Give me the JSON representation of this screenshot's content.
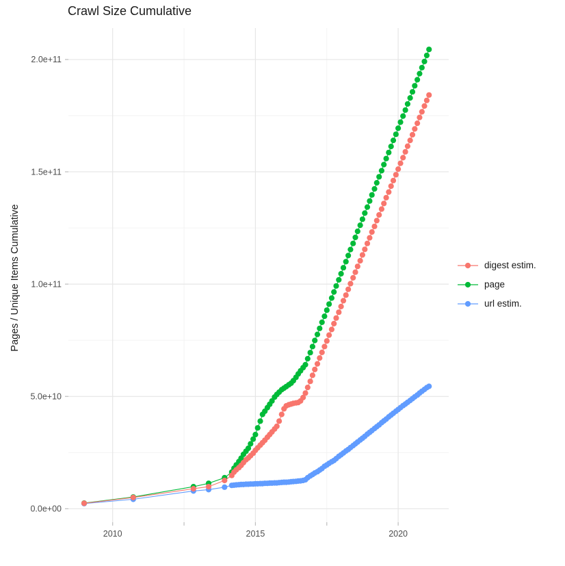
{
  "chart_data": {
    "type": "line",
    "title": "Crawl Size Cumulative",
    "xlabel": "",
    "ylabel": "Pages / Unique Items Cumulative",
    "y_unit": "absolute counts, point values stored in units of 1e9",
    "x_domain": [
      2008.45,
      2021.77
    ],
    "y_domain_e9": [
      -6,
      214
    ],
    "grid": "on",
    "legend_position": "right",
    "colors": {
      "major_grid": "#e6e6e6",
      "minor_grid": "#f2f2f2",
      "axis_tick": "#bdbdbd",
      "tick_text": "#4d4d4d",
      "title_text": "#1a1a1a"
    },
    "x_ticks": {
      "major": [
        {
          "value": 2010,
          "label": "2010"
        },
        {
          "value": 2015,
          "label": "2015"
        },
        {
          "value": 2020,
          "label": "2020"
        }
      ],
      "minor": [
        2012.5,
        2017.5
      ]
    },
    "y_ticks": {
      "major": [
        {
          "value": 0,
          "label": "0.0e+00"
        },
        {
          "value": 50,
          "label": "5.0e+10"
        },
        {
          "value": 100,
          "label": "1.0e+11"
        },
        {
          "value": 150,
          "label": "1.5e+11"
        },
        {
          "value": 200,
          "label": "2.0e+11"
        }
      ],
      "minor": [
        25,
        75,
        125,
        175
      ]
    },
    "series": [
      {
        "name": "digest estim.",
        "color": "#F8766D",
        "points": [
          [
            2009.0,
            2.4
          ],
          [
            2010.72,
            5.0
          ],
          [
            2012.83,
            8.9
          ],
          [
            2013.36,
            9.8
          ],
          [
            2013.92,
            12.6
          ],
          [
            2014.17,
            14.8
          ],
          [
            2014.25,
            16.3
          ],
          [
            2014.33,
            17.3
          ],
          [
            2014.42,
            18.3
          ],
          [
            2014.5,
            19.3
          ],
          [
            2014.58,
            20.5
          ],
          [
            2014.67,
            21.8
          ],
          [
            2014.75,
            22.6
          ],
          [
            2014.83,
            23.6
          ],
          [
            2014.92,
            24.7
          ],
          [
            2015.0,
            26.0
          ],
          [
            2015.08,
            27.1
          ],
          [
            2015.17,
            28.3
          ],
          [
            2015.25,
            29.4
          ],
          [
            2015.33,
            30.5
          ],
          [
            2015.42,
            31.8
          ],
          [
            2015.5,
            33.0
          ],
          [
            2015.58,
            34.2
          ],
          [
            2015.67,
            35.5
          ],
          [
            2015.75,
            36.7
          ],
          [
            2015.83,
            39.0
          ],
          [
            2015.92,
            42.0
          ],
          [
            2016.0,
            44.5
          ],
          [
            2016.08,
            45.8
          ],
          [
            2016.17,
            46.3
          ],
          [
            2016.25,
            46.6
          ],
          [
            2016.33,
            46.9
          ],
          [
            2016.42,
            47.1
          ],
          [
            2016.5,
            47.3
          ],
          [
            2016.58,
            48.0
          ],
          [
            2016.67,
            49.5
          ],
          [
            2016.75,
            51.5
          ],
          [
            2016.83,
            54.0
          ],
          [
            2016.92,
            56.7
          ],
          [
            2017.0,
            59.4
          ],
          [
            2017.08,
            62.0
          ],
          [
            2017.17,
            64.5
          ],
          [
            2017.25,
            67.1
          ],
          [
            2017.33,
            69.6
          ],
          [
            2017.42,
            72.2
          ],
          [
            2017.5,
            74.7
          ],
          [
            2017.58,
            77.3
          ],
          [
            2017.67,
            79.8
          ],
          [
            2017.75,
            82.4
          ],
          [
            2017.83,
            84.9
          ],
          [
            2017.92,
            87.5
          ],
          [
            2018.0,
            90.0
          ],
          [
            2018.08,
            92.6
          ],
          [
            2018.17,
            95.1
          ],
          [
            2018.25,
            97.7
          ],
          [
            2018.33,
            100.2
          ],
          [
            2018.42,
            102.8
          ],
          [
            2018.5,
            105.3
          ],
          [
            2018.58,
            107.9
          ],
          [
            2018.67,
            110.4
          ],
          [
            2018.75,
            113.0
          ],
          [
            2018.83,
            115.5
          ],
          [
            2018.92,
            118.1
          ],
          [
            2019.0,
            120.6
          ],
          [
            2019.08,
            123.2
          ],
          [
            2019.17,
            125.7
          ],
          [
            2019.25,
            128.3
          ],
          [
            2019.33,
            130.8
          ],
          [
            2019.42,
            133.4
          ],
          [
            2019.5,
            135.9
          ],
          [
            2019.58,
            138.5
          ],
          [
            2019.67,
            141.0
          ],
          [
            2019.75,
            143.6
          ],
          [
            2019.83,
            146.1
          ],
          [
            2019.92,
            148.7
          ],
          [
            2020.0,
            151.2
          ],
          [
            2020.08,
            153.8
          ],
          [
            2020.17,
            156.3
          ],
          [
            2020.25,
            158.9
          ],
          [
            2020.33,
            161.4
          ],
          [
            2020.42,
            164.0
          ],
          [
            2020.5,
            166.5
          ],
          [
            2020.58,
            169.1
          ],
          [
            2020.67,
            171.6
          ],
          [
            2020.75,
            174.2
          ],
          [
            2020.83,
            176.7
          ],
          [
            2020.92,
            179.3
          ],
          [
            2021.0,
            181.8
          ],
          [
            2021.08,
            184.2
          ]
        ]
      },
      {
        "name": "page",
        "color": "#00BA38",
        "points": [
          [
            2009.0,
            2.5
          ],
          [
            2010.72,
            5.2
          ],
          [
            2012.83,
            9.8
          ],
          [
            2013.36,
            11.3
          ],
          [
            2013.92,
            13.8
          ],
          [
            2014.17,
            16.3
          ],
          [
            2014.25,
            18.0
          ],
          [
            2014.33,
            19.5
          ],
          [
            2014.42,
            21.0
          ],
          [
            2014.5,
            22.5
          ],
          [
            2014.58,
            24.2
          ],
          [
            2014.67,
            25.6
          ],
          [
            2014.75,
            26.9
          ],
          [
            2014.83,
            28.9
          ],
          [
            2014.92,
            31.0
          ],
          [
            2015.0,
            33.0
          ],
          [
            2015.08,
            36.0
          ],
          [
            2015.17,
            39.0
          ],
          [
            2015.25,
            42.0
          ],
          [
            2015.33,
            43.4
          ],
          [
            2015.42,
            45.0
          ],
          [
            2015.5,
            46.5
          ],
          [
            2015.58,
            48.0
          ],
          [
            2015.67,
            49.7
          ],
          [
            2015.75,
            50.9
          ],
          [
            2015.83,
            51.9
          ],
          [
            2015.92,
            53.0
          ],
          [
            2016.0,
            53.7
          ],
          [
            2016.08,
            54.4
          ],
          [
            2016.17,
            55.2
          ],
          [
            2016.25,
            55.9
          ],
          [
            2016.33,
            57.0
          ],
          [
            2016.42,
            58.5
          ],
          [
            2016.5,
            60.0
          ],
          [
            2016.58,
            61.4
          ],
          [
            2016.67,
            62.8
          ],
          [
            2016.75,
            64.1
          ],
          [
            2016.83,
            66.8
          ],
          [
            2016.92,
            69.5
          ],
          [
            2017.0,
            72.2
          ],
          [
            2017.08,
            74.9
          ],
          [
            2017.17,
            77.6
          ],
          [
            2017.25,
            80.3
          ],
          [
            2017.33,
            83.0
          ],
          [
            2017.42,
            85.7
          ],
          [
            2017.5,
            88.4
          ],
          [
            2017.58,
            91.1
          ],
          [
            2017.67,
            93.8
          ],
          [
            2017.75,
            96.5
          ],
          [
            2017.83,
            99.2
          ],
          [
            2017.92,
            101.9
          ],
          [
            2018.0,
            104.6
          ],
          [
            2018.08,
            107.3
          ],
          [
            2018.17,
            110.0
          ],
          [
            2018.25,
            112.7
          ],
          [
            2018.33,
            115.4
          ],
          [
            2018.42,
            118.1
          ],
          [
            2018.5,
            120.8
          ],
          [
            2018.58,
            123.5
          ],
          [
            2018.67,
            126.2
          ],
          [
            2018.75,
            128.9
          ],
          [
            2018.83,
            131.6
          ],
          [
            2018.92,
            134.3
          ],
          [
            2019.0,
            137.0
          ],
          [
            2019.08,
            139.7
          ],
          [
            2019.17,
            142.4
          ],
          [
            2019.25,
            145.1
          ],
          [
            2019.33,
            147.8
          ],
          [
            2019.42,
            150.5
          ],
          [
            2019.5,
            153.2
          ],
          [
            2019.58,
            155.9
          ],
          [
            2019.67,
            158.6
          ],
          [
            2019.75,
            161.3
          ],
          [
            2019.83,
            164.0
          ],
          [
            2019.92,
            166.7
          ],
          [
            2020.0,
            169.4
          ],
          [
            2020.08,
            172.1
          ],
          [
            2020.17,
            174.8
          ],
          [
            2020.25,
            177.5
          ],
          [
            2020.33,
            180.2
          ],
          [
            2020.42,
            182.9
          ],
          [
            2020.5,
            185.6
          ],
          [
            2020.58,
            188.3
          ],
          [
            2020.67,
            191.0
          ],
          [
            2020.75,
            193.7
          ],
          [
            2020.83,
            196.4
          ],
          [
            2020.92,
            199.1
          ],
          [
            2021.0,
            201.8
          ],
          [
            2021.08,
            204.5
          ]
        ]
      },
      {
        "name": "url estim.",
        "color": "#619CFF",
        "points": [
          [
            2009.0,
            2.3
          ],
          [
            2010.72,
            4.2
          ],
          [
            2012.83,
            7.9
          ],
          [
            2013.36,
            8.5
          ],
          [
            2013.92,
            9.6
          ],
          [
            2014.17,
            10.4
          ],
          [
            2014.25,
            10.5
          ],
          [
            2014.33,
            10.6
          ],
          [
            2014.42,
            10.7
          ],
          [
            2014.5,
            10.8
          ],
          [
            2014.58,
            10.8
          ],
          [
            2014.67,
            10.9
          ],
          [
            2014.75,
            10.9
          ],
          [
            2014.83,
            11.0
          ],
          [
            2014.92,
            11.0
          ],
          [
            2015.0,
            11.1
          ],
          [
            2015.08,
            11.1
          ],
          [
            2015.17,
            11.2
          ],
          [
            2015.25,
            11.2
          ],
          [
            2015.33,
            11.3
          ],
          [
            2015.42,
            11.3
          ],
          [
            2015.5,
            11.4
          ],
          [
            2015.58,
            11.4
          ],
          [
            2015.67,
            11.5
          ],
          [
            2015.75,
            11.5
          ],
          [
            2015.83,
            11.6
          ],
          [
            2015.92,
            11.7
          ],
          [
            2016.0,
            11.8
          ],
          [
            2016.08,
            11.8
          ],
          [
            2016.17,
            11.9
          ],
          [
            2016.25,
            12.0
          ],
          [
            2016.33,
            12.1
          ],
          [
            2016.42,
            12.2
          ],
          [
            2016.5,
            12.3
          ],
          [
            2016.58,
            12.4
          ],
          [
            2016.67,
            12.6
          ],
          [
            2016.75,
            12.9
          ],
          [
            2016.83,
            13.8
          ],
          [
            2016.92,
            14.6
          ],
          [
            2017.0,
            15.2
          ],
          [
            2017.08,
            15.9
          ],
          [
            2017.17,
            16.5
          ],
          [
            2017.25,
            17.2
          ],
          [
            2017.33,
            17.9
          ],
          [
            2017.42,
            18.9
          ],
          [
            2017.5,
            19.5
          ],
          [
            2017.58,
            20.2
          ],
          [
            2017.67,
            20.9
          ],
          [
            2017.75,
            21.5
          ],
          [
            2017.83,
            22.3
          ],
          [
            2017.92,
            23.3
          ],
          [
            2018.0,
            24.0
          ],
          [
            2018.08,
            24.8
          ],
          [
            2018.17,
            25.7
          ],
          [
            2018.25,
            26.4
          ],
          [
            2018.33,
            27.2
          ],
          [
            2018.42,
            28.1
          ],
          [
            2018.5,
            28.9
          ],
          [
            2018.58,
            29.7
          ],
          [
            2018.67,
            30.6
          ],
          [
            2018.75,
            31.4
          ],
          [
            2018.83,
            32.2
          ],
          [
            2018.92,
            33.2
          ],
          [
            2019.0,
            34.0
          ],
          [
            2019.08,
            34.8
          ],
          [
            2019.17,
            35.7
          ],
          [
            2019.25,
            36.5
          ],
          [
            2019.33,
            37.3
          ],
          [
            2019.42,
            38.3
          ],
          [
            2019.5,
            39.1
          ],
          [
            2019.58,
            39.9
          ],
          [
            2019.67,
            40.9
          ],
          [
            2019.75,
            41.7
          ],
          [
            2019.83,
            42.5
          ],
          [
            2019.92,
            43.4
          ],
          [
            2020.0,
            44.2
          ],
          [
            2020.08,
            45.0
          ],
          [
            2020.17,
            45.9
          ],
          [
            2020.25,
            46.6
          ],
          [
            2020.33,
            47.4
          ],
          [
            2020.42,
            48.2
          ],
          [
            2020.5,
            49.0
          ],
          [
            2020.58,
            49.8
          ],
          [
            2020.67,
            50.6
          ],
          [
            2020.75,
            51.5
          ],
          [
            2020.83,
            52.3
          ],
          [
            2020.92,
            53.1
          ],
          [
            2021.0,
            53.9
          ],
          [
            2021.08,
            54.5
          ]
        ]
      }
    ]
  }
}
